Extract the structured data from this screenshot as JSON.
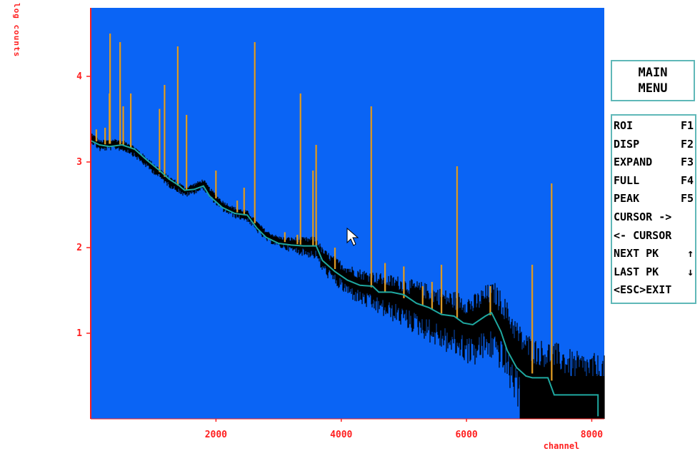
{
  "chart_data": {
    "type": "line",
    "title": "",
    "xlabel": "channel",
    "ylabel": "log counts",
    "xlim": [
      0,
      8200
    ],
    "ylim": [
      0,
      4.8
    ],
    "x_ticks": [
      2000,
      4000,
      6000,
      8000
    ],
    "x_tick_labels": [
      "2000",
      "4000",
      "6000",
      "8000"
    ],
    "y_ticks": [
      1,
      2,
      3,
      4
    ],
    "y_tick_labels": [
      "1",
      "2",
      "3",
      "4"
    ],
    "grid": false,
    "colors": {
      "background": "#0a64f5",
      "spectrum": "#000000",
      "peaks": "#e8a020",
      "roi_line": "#1fa8a0",
      "axis": "#ff2020"
    },
    "baseline": {
      "x": [
        0,
        150,
        400,
        600,
        700,
        900,
        1100,
        1250,
        1400,
        1500,
        1650,
        1800,
        1900,
        2100,
        2300,
        2500,
        2650,
        2800,
        3000,
        3200,
        3400,
        3600,
        3700,
        3900,
        4100,
        4300,
        4500,
        4700,
        4900,
        5100,
        5300,
        5500,
        5700,
        5900,
        6100,
        6300,
        6450,
        6600,
        6750,
        6900,
        7100,
        7350,
        7500,
        7700,
        8000,
        8200
      ],
      "y": [
        3.3,
        3.2,
        3.22,
        3.18,
        3.13,
        3.0,
        2.88,
        2.78,
        2.72,
        2.66,
        2.7,
        2.75,
        2.65,
        2.5,
        2.42,
        2.38,
        2.26,
        2.15,
        2.08,
        2.05,
        2.03,
        2.02,
        1.88,
        1.75,
        1.65,
        1.58,
        1.53,
        1.48,
        1.44,
        1.38,
        1.33,
        1.26,
        1.2,
        1.16,
        1.1,
        1.2,
        1.22,
        1.05,
        0.82,
        0.62,
        0.5,
        0.45,
        0.4,
        0.3,
        0.25,
        0.2
      ]
    },
    "roi_x": [
      0,
      140,
      300,
      500,
      700,
      900,
      1100,
      1250,
      1400,
      1500,
      1650,
      1800,
      1900,
      2100,
      2300,
      2500,
      2650,
      2800,
      3000,
      3200,
      3400,
      3600,
      3700,
      3900,
      4100,
      4300,
      4500,
      4600,
      4800,
      5000,
      5200,
      5400,
      5600,
      5800,
      5950,
      6100,
      6300,
      6400,
      6550,
      6650,
      6800,
      6950,
      7050,
      7300,
      7400,
      8100,
      8100
    ],
    "roi_y": [
      3.25,
      3.2,
      3.18,
      3.2,
      3.15,
      3.02,
      2.9,
      2.8,
      2.73,
      2.67,
      2.68,
      2.72,
      2.6,
      2.47,
      2.4,
      2.38,
      2.23,
      2.12,
      2.05,
      2.03,
      2.02,
      2.02,
      1.85,
      1.72,
      1.62,
      1.56,
      1.55,
      1.48,
      1.48,
      1.45,
      1.35,
      1.3,
      1.22,
      1.2,
      1.12,
      1.1,
      1.2,
      1.24,
      1.02,
      0.8,
      0.6,
      0.5,
      0.48,
      0.48,
      0.28,
      0.28,
      0.03
    ],
    "peaks": [
      {
        "x": 90,
        "y": 3.38
      },
      {
        "x": 230,
        "y": 3.4
      },
      {
        "x": 300,
        "y": 3.8
      },
      {
        "x": 310,
        "y": 4.5
      },
      {
        "x": 470,
        "y": 4.4
      },
      {
        "x": 520,
        "y": 3.65
      },
      {
        "x": 640,
        "y": 3.8
      },
      {
        "x": 1100,
        "y": 3.62
      },
      {
        "x": 1180,
        "y": 3.9
      },
      {
        "x": 1390,
        "y": 4.35
      },
      {
        "x": 1530,
        "y": 3.55
      },
      {
        "x": 2000,
        "y": 2.9
      },
      {
        "x": 2340,
        "y": 2.55
      },
      {
        "x": 2450,
        "y": 2.7
      },
      {
        "x": 2620,
        "y": 4.4
      },
      {
        "x": 3100,
        "y": 2.18
      },
      {
        "x": 3300,
        "y": 2.15
      },
      {
        "x": 3350,
        "y": 3.8
      },
      {
        "x": 3550,
        "y": 2.9
      },
      {
        "x": 3600,
        "y": 3.2
      },
      {
        "x": 3900,
        "y": 2.0
      },
      {
        "x": 4480,
        "y": 3.65
      },
      {
        "x": 4700,
        "y": 1.82
      },
      {
        "x": 5000,
        "y": 1.78
      },
      {
        "x": 5300,
        "y": 1.55
      },
      {
        "x": 5450,
        "y": 1.6
      },
      {
        "x": 5600,
        "y": 1.8
      },
      {
        "x": 5850,
        "y": 2.95
      },
      {
        "x": 6380,
        "y": 1.55
      },
      {
        "x": 7050,
        "y": 1.8
      },
      {
        "x": 7360,
        "y": 2.75
      }
    ]
  },
  "menu": {
    "title_line1": "MAIN",
    "title_line2": "MENU",
    "items": [
      {
        "label": "ROI",
        "key": "F1"
      },
      {
        "label": "DISP",
        "key": "F2"
      },
      {
        "label": "EXPAND",
        "key": "F3"
      },
      {
        "label": "FULL",
        "key": "F4"
      },
      {
        "label": "PEAK",
        "key": "F5"
      },
      {
        "label": "CURSOR ->",
        "key": ""
      },
      {
        "label": "<- CURSOR",
        "key": ""
      },
      {
        "label": "NEXT PK",
        "key": "↑"
      },
      {
        "label": "LAST PK",
        "key": "↓"
      },
      {
        "label": "<ESC>EXIT",
        "key": ""
      }
    ]
  }
}
